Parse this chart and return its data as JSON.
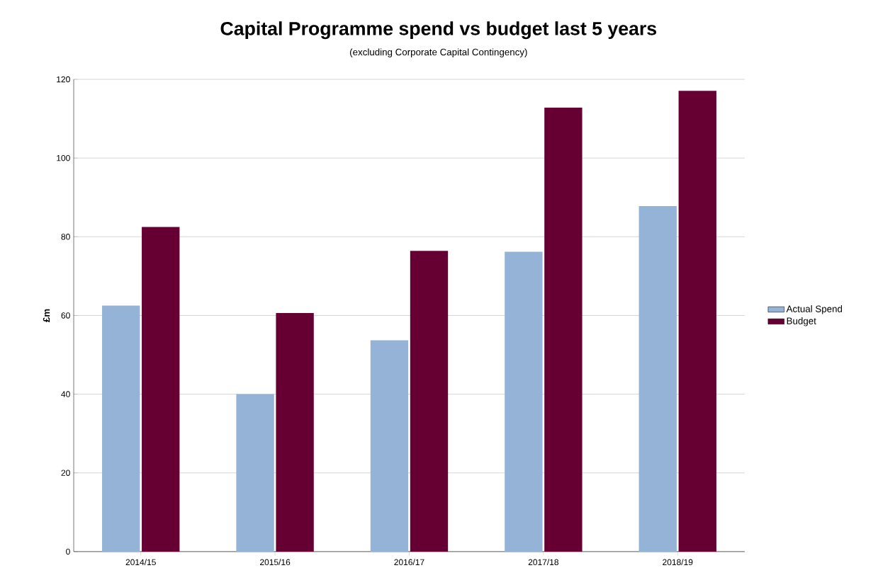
{
  "chart_data": {
    "type": "bar",
    "title": "Capital Programme spend vs budget last 5 years",
    "subtitle": "(excluding Corporate Capital Contingency)",
    "ylabel": "£m",
    "categories": [
      "2014/15",
      "2015/16",
      "2016/17",
      "2017/18",
      "2018/19"
    ],
    "series": [
      {
        "name": "Actual Spend",
        "color": "#95b3d7",
        "values": [
          62.5,
          40,
          53.7,
          76.2,
          87.8
        ]
      },
      {
        "name": "Budget",
        "color": "#660033",
        "values": [
          82.5,
          60.6,
          76.4,
          112.8,
          117.1
        ]
      }
    ],
    "ylim": [
      0,
      120
    ],
    "yticks": [
      0,
      20,
      40,
      60,
      80,
      100,
      120
    ],
    "grid": "y",
    "legend": "right"
  }
}
